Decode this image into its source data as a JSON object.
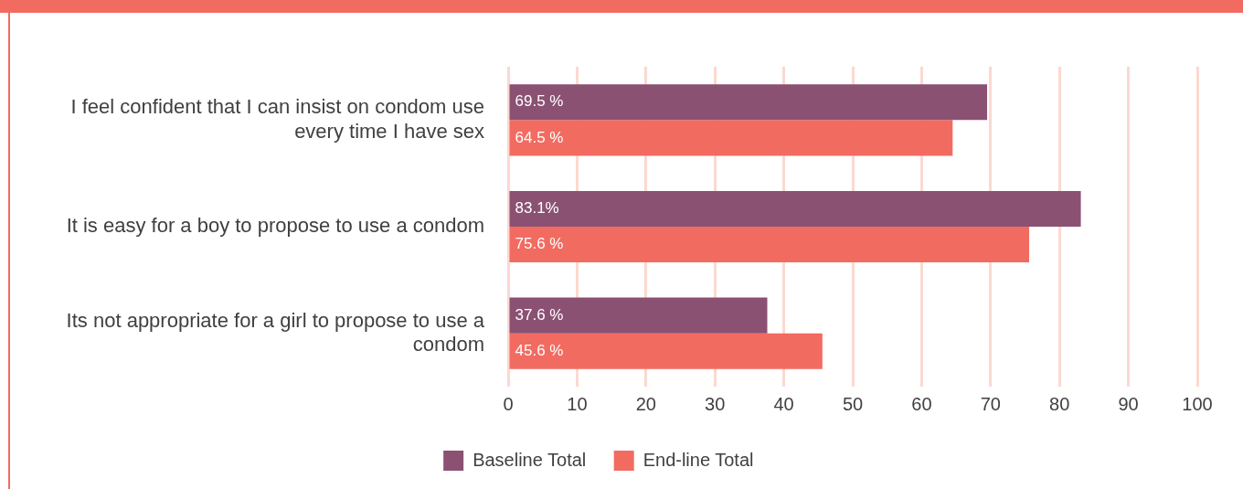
{
  "chart_data": {
    "type": "bar",
    "orientation": "horizontal",
    "categories": [
      "I feel confident that I can insist on condom use every time I have sex",
      "It is easy for a boy to propose to use a condom",
      "Its not appropriate for a girl to propose to use a condom"
    ],
    "series": [
      {
        "name": "Baseline Total",
        "color": "#8b5173",
        "values": [
          69.5,
          83.1,
          37.6
        ],
        "value_labels": [
          "69.5 %",
          "83.1%",
          "37.6 %"
        ]
      },
      {
        "name": "End-line Total",
        "color": "#f26b61",
        "values": [
          64.5,
          75.6,
          45.6
        ],
        "value_labels": [
          "64.5 %",
          "75.6 %",
          "45.6 %"
        ]
      }
    ],
    "xlim": [
      0,
      100
    ],
    "xticks": [
      0,
      10,
      20,
      30,
      40,
      50,
      60,
      70,
      80,
      90,
      100
    ],
    "grid": "x",
    "legend": "bottom"
  }
}
